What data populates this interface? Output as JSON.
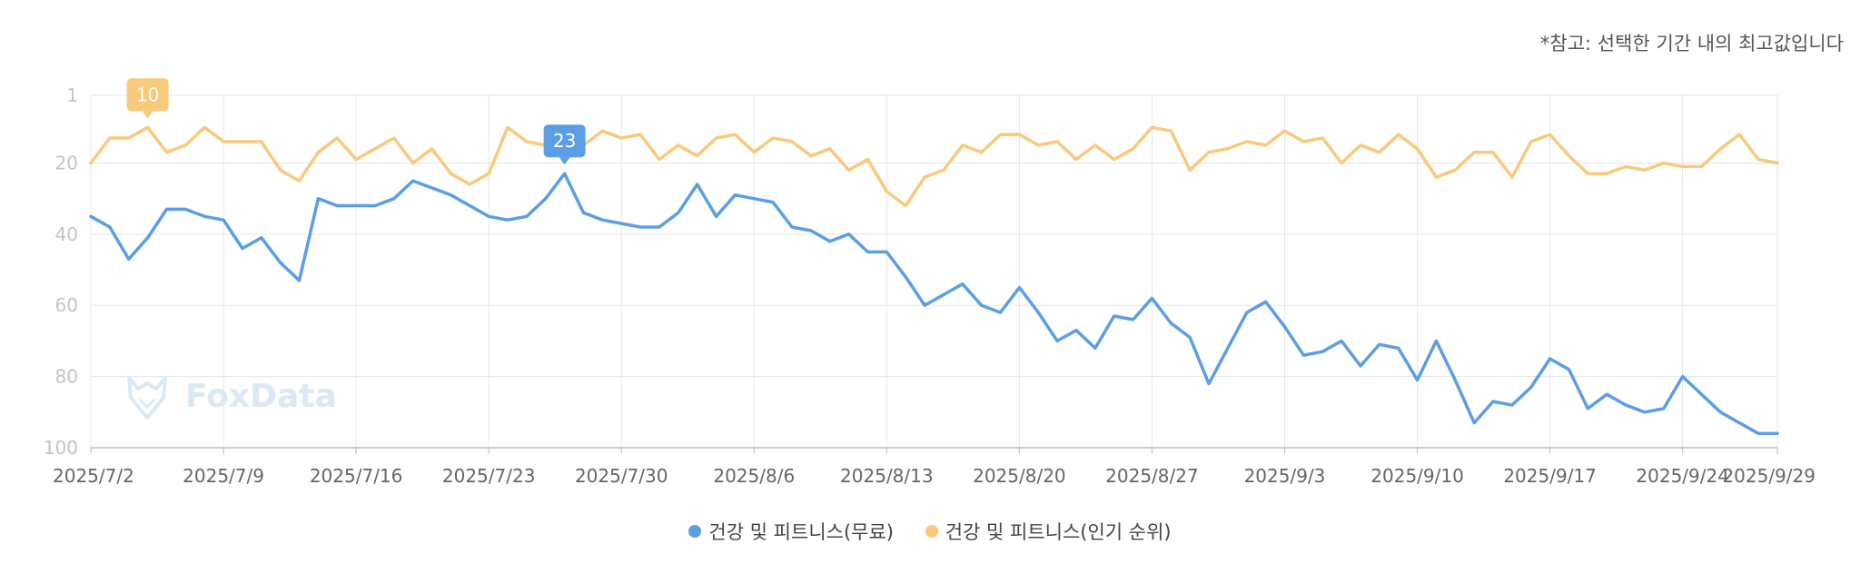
{
  "note": "*참고: 선택한 기간 내의 최고값입니다",
  "watermark": "FoxData",
  "colors": {
    "free": "#5b9ee6",
    "popular": "#f9c97c",
    "grid": "#e6e6e6"
  },
  "chart_data": {
    "type": "line",
    "title": "",
    "xlabel": "",
    "ylabel": "",
    "y_reversed": true,
    "ylim": [
      1,
      100
    ],
    "yticks": [
      1,
      20,
      40,
      60,
      80,
      100
    ],
    "xticks": [
      "2025/7/2",
      "2025/7/9",
      "2025/7/16",
      "2025/7/23",
      "2025/7/30",
      "2025/8/6",
      "2025/8/13",
      "2025/8/20",
      "2025/8/27",
      "2025/9/3",
      "2025/9/10",
      "2025/9/17",
      "2025/9/24",
      "2025/9/29"
    ],
    "x_start": "2025/7/2",
    "x_end": "2025/9/29",
    "grid": true,
    "legend_position": "bottom",
    "series": [
      {
        "name": "건강 및 피트니스(무료)",
        "color": "#5b9ee6",
        "values": [
          35,
          38,
          47,
          41,
          33,
          33,
          35,
          36,
          44,
          41,
          48,
          53,
          30,
          32,
          32,
          32,
          30,
          25,
          27,
          29,
          32,
          35,
          36,
          35,
          30,
          23,
          34,
          36,
          37,
          38,
          38,
          34,
          26,
          35,
          29,
          30,
          31,
          38,
          39,
          42,
          40,
          45,
          45,
          52,
          60,
          57,
          54,
          60,
          62,
          55,
          62,
          70,
          67,
          72,
          63,
          64,
          58,
          65,
          69,
          82,
          72,
          62,
          59,
          66,
          74,
          73,
          70,
          77,
          71,
          72,
          81,
          70,
          81,
          93,
          87,
          88,
          83,
          75,
          78,
          89,
          85,
          88,
          90,
          89,
          80,
          85,
          90,
          93,
          96,
          96
        ],
        "peak_label": "23"
      },
      {
        "name": "건강 및 피트니스(인기 순위)",
        "color": "#f9c97c",
        "values": [
          20,
          13,
          13,
          10,
          17,
          15,
          10,
          14,
          14,
          14,
          22,
          25,
          17,
          13,
          19,
          16,
          13,
          20,
          16,
          23,
          26,
          23,
          10,
          14,
          15,
          14,
          15,
          11,
          13,
          12,
          19,
          15,
          18,
          13,
          12,
          17,
          13,
          14,
          18,
          16,
          22,
          19,
          28,
          32,
          24,
          22,
          15,
          17,
          12,
          12,
          15,
          14,
          19,
          15,
          19,
          16,
          10,
          11,
          22,
          17,
          16,
          14,
          15,
          11,
          14,
          13,
          20,
          15,
          17,
          12,
          16,
          24,
          22,
          17,
          17,
          24,
          14,
          12,
          18,
          23,
          23,
          21,
          22,
          20,
          21,
          21,
          16,
          12,
          19,
          20
        ],
        "peak_label": "10"
      }
    ]
  }
}
